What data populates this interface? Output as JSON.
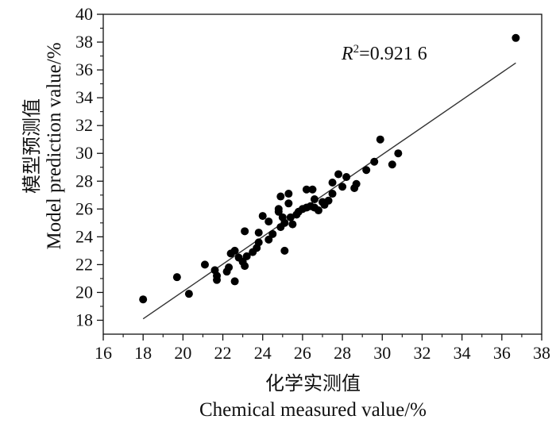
{
  "chart_data": {
    "type": "scatter",
    "xlabel_cn": "化学实测值",
    "xlabel": "Chemical measured value/%",
    "ylabel_cn": "模型预测值",
    "ylabel": "Model prediction value/%",
    "annotation": {
      "prefix": "R",
      "sup": "2",
      "value": "=0.921 6"
    },
    "xlim": [
      16,
      38
    ],
    "ylim": [
      17,
      40
    ],
    "x_ticks": [
      16,
      18,
      20,
      22,
      24,
      26,
      28,
      30,
      32,
      34,
      36,
      38
    ],
    "y_ticks": [
      18,
      20,
      22,
      24,
      26,
      28,
      30,
      32,
      34,
      36,
      38,
      40
    ],
    "grid": false,
    "fit_line": {
      "x": [
        18.0,
        36.7
      ],
      "y": [
        18.1,
        36.5
      ]
    },
    "points": [
      [
        18.0,
        19.5
      ],
      [
        19.7,
        21.1
      ],
      [
        20.3,
        19.9
      ],
      [
        21.1,
        22.0
      ],
      [
        21.6,
        21.6
      ],
      [
        21.7,
        21.2
      ],
      [
        21.7,
        20.9
      ],
      [
        22.2,
        21.5
      ],
      [
        22.3,
        21.8
      ],
      [
        22.4,
        22.8
      ],
      [
        22.6,
        23.0
      ],
      [
        22.6,
        20.8
      ],
      [
        22.8,
        22.5
      ],
      [
        23.0,
        22.2
      ],
      [
        23.1,
        24.4
      ],
      [
        23.1,
        21.9
      ],
      [
        23.2,
        22.6
      ],
      [
        23.5,
        22.9
      ],
      [
        23.7,
        23.2
      ],
      [
        23.8,
        23.6
      ],
      [
        23.8,
        24.3
      ],
      [
        24.0,
        25.5
      ],
      [
        24.3,
        25.1
      ],
      [
        24.3,
        23.8
      ],
      [
        24.5,
        24.2
      ],
      [
        24.8,
        25.8
      ],
      [
        24.8,
        26.0
      ],
      [
        24.9,
        24.7
      ],
      [
        24.9,
        26.9
      ],
      [
        25.0,
        25.4
      ],
      [
        25.1,
        25.0
      ],
      [
        25.1,
        23.0
      ],
      [
        25.3,
        27.1
      ],
      [
        25.3,
        26.4
      ],
      [
        25.4,
        25.4
      ],
      [
        25.5,
        24.9
      ],
      [
        25.7,
        25.6
      ],
      [
        25.8,
        25.8
      ],
      [
        26.0,
        26.0
      ],
      [
        26.2,
        26.1
      ],
      [
        26.2,
        27.4
      ],
      [
        26.4,
        26.2
      ],
      [
        26.5,
        27.4
      ],
      [
        26.6,
        26.1
      ],
      [
        26.6,
        26.7
      ],
      [
        26.8,
        25.9
      ],
      [
        27.0,
        26.5
      ],
      [
        27.1,
        26.3
      ],
      [
        27.3,
        26.6
      ],
      [
        27.5,
        27.1
      ],
      [
        27.5,
        27.9
      ],
      [
        27.8,
        28.5
      ],
      [
        28.0,
        27.6
      ],
      [
        28.2,
        28.3
      ],
      [
        28.6,
        27.5
      ],
      [
        28.7,
        27.8
      ],
      [
        29.2,
        28.8
      ],
      [
        29.6,
        29.4
      ],
      [
        29.9,
        31.0
      ],
      [
        30.5,
        29.2
      ],
      [
        30.8,
        30.0
      ],
      [
        36.7,
        38.3
      ]
    ]
  }
}
